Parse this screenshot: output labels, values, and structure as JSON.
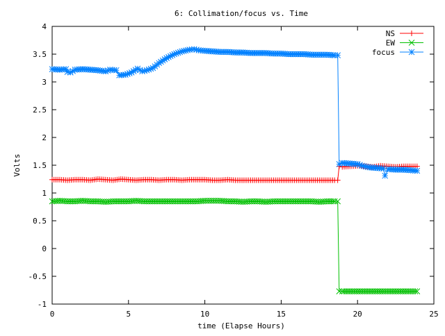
{
  "chart_data": {
    "type": "line",
    "title": "6: Collimation/focus vs. Time",
    "xlabel": "time (Elapse Hours)",
    "ylabel": "Volts",
    "xlim": [
      0,
      25
    ],
    "ylim": [
      -1,
      4
    ],
    "x_ticks": [
      0,
      5,
      10,
      15,
      20,
      25
    ],
    "x_tick_labels": [
      "0",
      "5",
      "10",
      "15",
      "20",
      "25"
    ],
    "y_ticks": [
      -1,
      -0.5,
      0,
      0.5,
      1,
      1.5,
      2,
      2.5,
      3,
      3.5,
      4
    ],
    "y_tick_labels": [
      "-1",
      "-0.5",
      "0",
      "0.5",
      "1",
      "1.5",
      "2",
      "2.5",
      "3",
      "3.5",
      "4"
    ],
    "grid": false,
    "legend_position": "top-right",
    "series": [
      {
        "name": "NS",
        "color": "#ff0000",
        "marker": "plus",
        "points": [
          [
            0.0,
            1.24
          ],
          [
            0.5,
            1.24
          ],
          [
            1.0,
            1.23
          ],
          [
            1.5,
            1.24
          ],
          [
            2.0,
            1.24
          ],
          [
            2.5,
            1.23
          ],
          [
            3.0,
            1.25
          ],
          [
            3.5,
            1.24
          ],
          [
            4.0,
            1.23
          ],
          [
            4.5,
            1.25
          ],
          [
            5.0,
            1.24
          ],
          [
            5.5,
            1.23
          ],
          [
            6.0,
            1.24
          ],
          [
            6.5,
            1.24
          ],
          [
            7.0,
            1.23
          ],
          [
            7.5,
            1.24
          ],
          [
            8.0,
            1.24
          ],
          [
            8.5,
            1.23
          ],
          [
            9.0,
            1.24
          ],
          [
            9.5,
            1.24
          ],
          [
            10.0,
            1.24
          ],
          [
            10.5,
            1.23
          ],
          [
            11.0,
            1.23
          ],
          [
            11.5,
            1.24
          ],
          [
            12.0,
            1.23
          ],
          [
            12.5,
            1.23
          ],
          [
            13.0,
            1.23
          ],
          [
            13.5,
            1.23
          ],
          [
            14.0,
            1.23
          ],
          [
            14.5,
            1.23
          ],
          [
            15.0,
            1.23
          ],
          [
            15.5,
            1.23
          ],
          [
            16.0,
            1.23
          ],
          [
            16.5,
            1.23
          ],
          [
            17.0,
            1.23
          ],
          [
            17.5,
            1.23
          ],
          [
            18.0,
            1.23
          ],
          [
            18.5,
            1.23
          ],
          [
            18.7,
            1.23
          ],
          [
            18.8,
            1.48
          ],
          [
            19.0,
            1.47
          ],
          [
            19.5,
            1.48
          ],
          [
            20.0,
            1.49
          ],
          [
            20.5,
            1.48
          ],
          [
            21.0,
            1.47
          ],
          [
            21.5,
            1.49
          ],
          [
            22.0,
            1.48
          ],
          [
            22.5,
            1.47
          ],
          [
            23.0,
            1.48
          ],
          [
            23.5,
            1.48
          ],
          [
            23.9,
            1.48
          ]
        ]
      },
      {
        "name": "EW",
        "color": "#00c000",
        "marker": "cross",
        "points": [
          [
            0.0,
            0.85
          ],
          [
            0.5,
            0.86
          ],
          [
            1.0,
            0.85
          ],
          [
            1.5,
            0.85
          ],
          [
            2.0,
            0.86
          ],
          [
            2.5,
            0.85
          ],
          [
            3.0,
            0.85
          ],
          [
            3.5,
            0.84
          ],
          [
            4.0,
            0.85
          ],
          [
            4.5,
            0.85
          ],
          [
            5.0,
            0.85
          ],
          [
            5.5,
            0.86
          ],
          [
            6.0,
            0.85
          ],
          [
            6.5,
            0.85
          ],
          [
            7.0,
            0.85
          ],
          [
            7.5,
            0.85
          ],
          [
            8.0,
            0.85
          ],
          [
            8.5,
            0.85
          ],
          [
            9.0,
            0.85
          ],
          [
            9.5,
            0.85
          ],
          [
            10.0,
            0.86
          ],
          [
            10.5,
            0.86
          ],
          [
            11.0,
            0.86
          ],
          [
            11.5,
            0.85
          ],
          [
            12.0,
            0.85
          ],
          [
            12.5,
            0.84
          ],
          [
            13.0,
            0.85
          ],
          [
            13.5,
            0.85
          ],
          [
            14.0,
            0.84
          ],
          [
            14.5,
            0.85
          ],
          [
            15.0,
            0.85
          ],
          [
            15.5,
            0.85
          ],
          [
            16.0,
            0.85
          ],
          [
            16.5,
            0.85
          ],
          [
            17.0,
            0.85
          ],
          [
            17.5,
            0.84
          ],
          [
            18.0,
            0.85
          ],
          [
            18.5,
            0.85
          ],
          [
            18.7,
            0.85
          ],
          [
            18.8,
            -0.77
          ],
          [
            19.0,
            -0.77
          ],
          [
            19.5,
            -0.77
          ],
          [
            20.0,
            -0.77
          ],
          [
            20.5,
            -0.77
          ],
          [
            21.0,
            -0.77
          ],
          [
            21.5,
            -0.77
          ],
          [
            22.0,
            -0.77
          ],
          [
            22.5,
            -0.77
          ],
          [
            23.0,
            -0.77
          ],
          [
            23.5,
            -0.77
          ],
          [
            23.9,
            -0.77
          ]
        ]
      },
      {
        "name": "focus",
        "color": "#0080ff",
        "marker": "star",
        "points": [
          [
            0.0,
            3.23
          ],
          [
            0.5,
            3.22
          ],
          [
            0.9,
            3.23
          ],
          [
            1.0,
            3.18
          ],
          [
            1.2,
            3.17
          ],
          [
            1.5,
            3.22
          ],
          [
            2.0,
            3.23
          ],
          [
            2.5,
            3.22
          ],
          [
            3.0,
            3.21
          ],
          [
            3.5,
            3.19
          ],
          [
            3.8,
            3.22
          ],
          [
            4.2,
            3.21
          ],
          [
            4.4,
            3.12
          ],
          [
            4.8,
            3.13
          ],
          [
            5.2,
            3.17
          ],
          [
            5.6,
            3.24
          ],
          [
            5.9,
            3.19
          ],
          [
            6.2,
            3.21
          ],
          [
            6.6,
            3.25
          ],
          [
            7.0,
            3.34
          ],
          [
            7.5,
            3.43
          ],
          [
            8.0,
            3.5
          ],
          [
            8.5,
            3.55
          ],
          [
            9.0,
            3.58
          ],
          [
            9.3,
            3.59
          ],
          [
            9.6,
            3.57
          ],
          [
            10.0,
            3.56
          ],
          [
            10.5,
            3.55
          ],
          [
            11.0,
            3.54
          ],
          [
            11.5,
            3.54
          ],
          [
            12.0,
            3.53
          ],
          [
            12.5,
            3.53
          ],
          [
            13.0,
            3.52
          ],
          [
            13.5,
            3.52
          ],
          [
            14.0,
            3.52
          ],
          [
            14.5,
            3.51
          ],
          [
            15.0,
            3.51
          ],
          [
            15.5,
            3.5
          ],
          [
            16.0,
            3.5
          ],
          [
            16.5,
            3.5
          ],
          [
            17.0,
            3.49
          ],
          [
            17.5,
            3.49
          ],
          [
            18.0,
            3.49
          ],
          [
            18.5,
            3.48
          ],
          [
            18.7,
            3.48
          ],
          [
            18.8,
            1.52
          ],
          [
            19.0,
            1.54
          ],
          [
            19.5,
            1.53
          ],
          [
            20.0,
            1.52
          ],
          [
            20.3,
            1.49
          ],
          [
            20.8,
            1.46
          ],
          [
            21.3,
            1.45
          ],
          [
            21.7,
            1.44
          ],
          [
            21.8,
            1.31
          ],
          [
            22.0,
            1.43
          ],
          [
            22.5,
            1.42
          ],
          [
            23.0,
            1.42
          ],
          [
            23.5,
            1.41
          ],
          [
            23.9,
            1.4
          ]
        ]
      }
    ]
  }
}
